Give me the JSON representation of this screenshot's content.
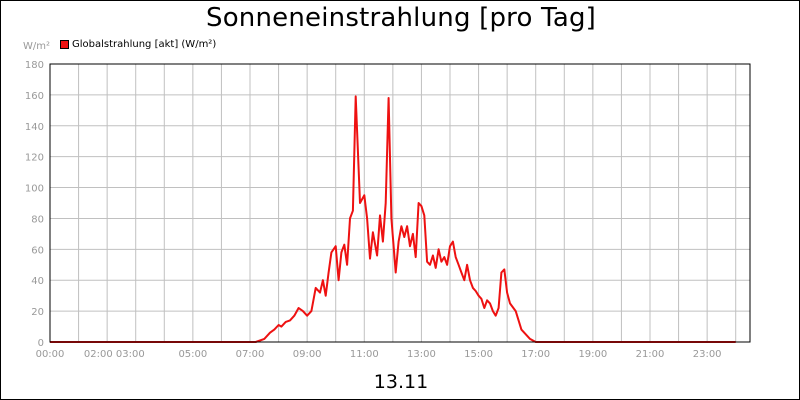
{
  "title": "Sonneneinstrahlung [pro Tag]",
  "date_label": "13.11",
  "unit_label": "W/m²",
  "colors": {
    "series": "#ee1111",
    "grid": "#c0c0c0",
    "tick_text": "#999999"
  },
  "chart_data": {
    "type": "line",
    "title": "Sonneneinstrahlung [pro Tag]",
    "ylabel": "W/m²",
    "xlabel": "13.11",
    "ylim": [
      0,
      180
    ],
    "xlim": [
      0,
      24.5
    ],
    "yticks": [
      0,
      20,
      40,
      60,
      80,
      100,
      120,
      140,
      160,
      180
    ],
    "xtick_labels": [
      {
        "x": 0,
        "label": "00:00"
      },
      {
        "x": 2.25,
        "label": "02:00 03:00"
      },
      {
        "x": 5,
        "label": "05:00"
      },
      {
        "x": 7,
        "label": "07:00"
      },
      {
        "x": 9,
        "label": "09:00"
      },
      {
        "x": 11,
        "label": "11:00"
      },
      {
        "x": 13,
        "label": "13:00"
      },
      {
        "x": 15,
        "label": "15:00"
      },
      {
        "x": 17,
        "label": "17:00"
      },
      {
        "x": 19,
        "label": "19:00"
      },
      {
        "x": 21,
        "label": "21:00"
      },
      {
        "x": 23,
        "label": "23:00"
      }
    ],
    "grid": true,
    "legend": "top-left",
    "series": [
      {
        "name": "Globalstrahlung [akt] (W/m²)",
        "x": [
          0,
          7.2,
          7.5,
          7.7,
          7.85,
          8.0,
          8.1,
          8.25,
          8.4,
          8.55,
          8.7,
          8.85,
          9.0,
          9.15,
          9.3,
          9.45,
          9.55,
          9.65,
          9.75,
          9.85,
          10.0,
          10.1,
          10.2,
          10.3,
          10.4,
          10.5,
          10.6,
          10.7,
          10.85,
          11.0,
          11.1,
          11.2,
          11.3,
          11.45,
          11.55,
          11.65,
          11.75,
          11.85,
          11.95,
          12.1,
          12.2,
          12.3,
          12.4,
          12.5,
          12.6,
          12.7,
          12.8,
          12.9,
          13.0,
          13.1,
          13.2,
          13.3,
          13.4,
          13.5,
          13.6,
          13.7,
          13.8,
          13.9,
          14.0,
          14.1,
          14.2,
          14.3,
          14.4,
          14.5,
          14.6,
          14.7,
          14.8,
          14.9,
          15.0,
          15.1,
          15.2,
          15.3,
          15.4,
          15.5,
          15.6,
          15.7,
          15.8,
          15.9,
          16.0,
          16.1,
          16.3,
          16.5,
          16.8,
          17.0,
          24.0
        ],
        "y": [
          0,
          0,
          2,
          6,
          8,
          11,
          10,
          13,
          14,
          17,
          22,
          20,
          17,
          20,
          35,
          32,
          40,
          30,
          45,
          58,
          62,
          40,
          58,
          63,
          50,
          80,
          85,
          159,
          90,
          95,
          80,
          54,
          71,
          56,
          82,
          65,
          90,
          158,
          80,
          45,
          65,
          75,
          68,
          75,
          62,
          70,
          55,
          90,
          88,
          82,
          52,
          50,
          56,
          48,
          60,
          52,
          55,
          50,
          62,
          65,
          55,
          50,
          45,
          40,
          50,
          40,
          35,
          33,
          30,
          28,
          22,
          27,
          25,
          20,
          17,
          22,
          45,
          47,
          32,
          25,
          20,
          8,
          2,
          0,
          0
        ]
      }
    ]
  }
}
